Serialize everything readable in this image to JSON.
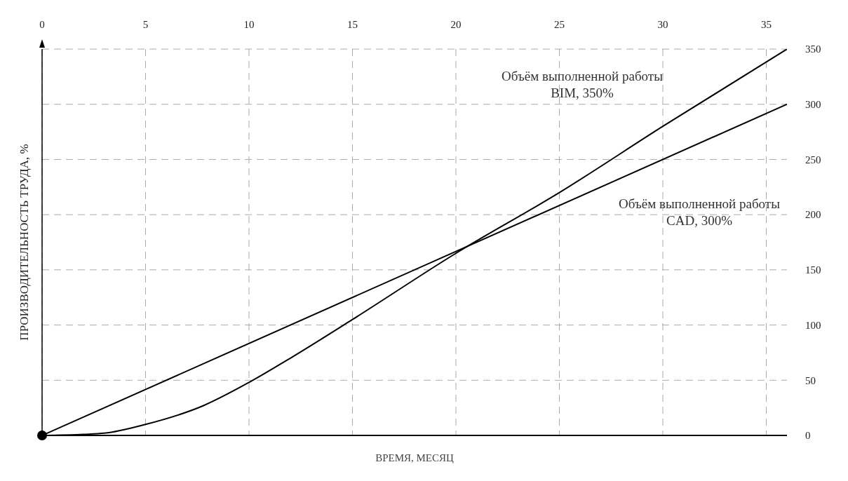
{
  "chart_data": {
    "type": "line",
    "xlabel": "ВРЕМЯ, МЕСЯЦ",
    "ylabel": "ПРОИЗВОДИТЕЛЬНОСТЬ ТРУДА, %",
    "xlim": [
      0,
      36
    ],
    "xticks": [
      0,
      5,
      10,
      15,
      20,
      25,
      30,
      35
    ],
    "ylim": [
      0,
      350
    ],
    "yticks": [
      0,
      50,
      100,
      150,
      200,
      250,
      300,
      350
    ],
    "grid": true,
    "line_style": "solid",
    "series": [
      {
        "name": "Объём выполненной работы\nBIM, 350%",
        "color": "#000000",
        "x": [
          0,
          2,
          3,
          5,
          7.8,
          10,
          12,
          15,
          20,
          25,
          30,
          36
        ],
        "values": [
          0,
          1,
          2,
          10,
          27,
          48,
          70,
          105,
          165,
          220,
          280,
          350
        ]
      },
      {
        "name": "Объём выполненной работы\nCAD, 300%",
        "color": "#000000",
        "x": [
          0,
          36
        ],
        "values": [
          0,
          300
        ]
      }
    ]
  }
}
